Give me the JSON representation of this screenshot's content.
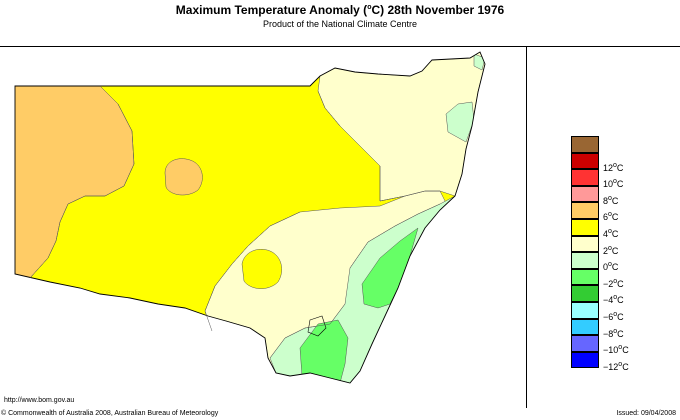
{
  "title": {
    "prefix": "Maximum Temperature Anomaly (",
    "degree": "o",
    "suffix": "C)  28th November 1976"
  },
  "subtitle": "Product of the National Climate Centre",
  "legend": [
    {
      "value": "",
      "color": "#996633"
    },
    {
      "value": "12",
      "color": "#cc0000"
    },
    {
      "value": "10",
      "color": "#ff3333"
    },
    {
      "value": "8",
      "color": "#ff9999"
    },
    {
      "value": "6",
      "color": "#ffcc66"
    },
    {
      "value": "4",
      "color": "#ffff00"
    },
    {
      "value": "2",
      "color": "#ffffcc"
    },
    {
      "value": "0",
      "color": "#ccffcc"
    },
    {
      "value": "−2",
      "color": "#66ff66"
    },
    {
      "value": "−4",
      "color": "#33cc33"
    },
    {
      "value": "−6",
      "color": "#99ffff"
    },
    {
      "value": "−8",
      "color": "#33ccff"
    },
    {
      "value": "−10",
      "color": "#6666ff"
    },
    {
      "value": "−12",
      "color": "#0000ff"
    }
  ],
  "legend_unit": "C",
  "map_colors": {
    "plus4_6": "#ffcc66",
    "plus2_4": "#ffff00",
    "zero_2": "#ffffcc",
    "minus2_0": "#ccffcc",
    "minus4_2": "#66ff66"
  },
  "footer": {
    "url": "http://www.bom.gov.au",
    "copyright": "© Commonwealth of Australia 2008, Australian Bureau of Meteorology",
    "issued": "Issued: 09/04/2008"
  }
}
